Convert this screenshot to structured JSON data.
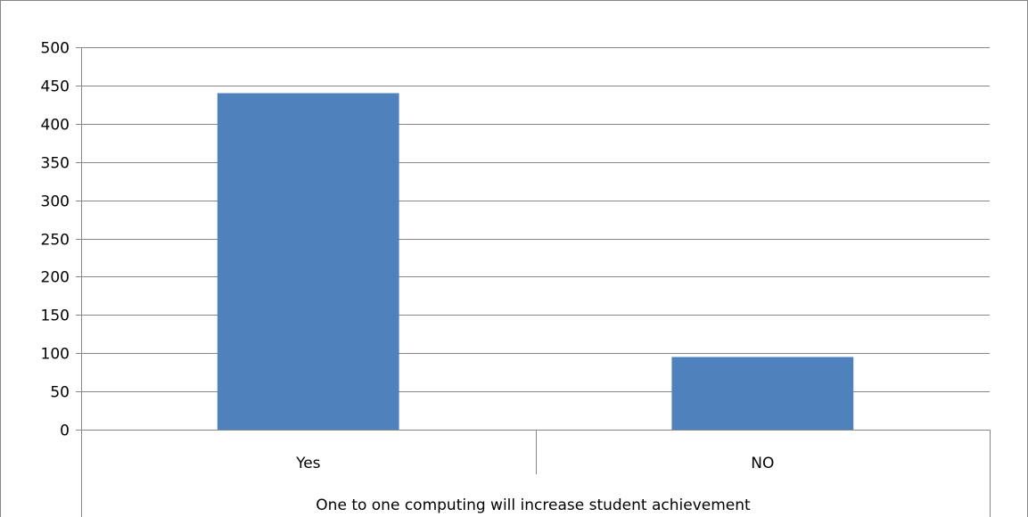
{
  "chart_data": {
    "type": "bar",
    "categories": [
      "Yes",
      "NO"
    ],
    "values": [
      440,
      95
    ],
    "group_label": "One to one computing will increase student achievement",
    "ylim": [
      0,
      500
    ],
    "yticks": [
      0,
      50,
      100,
      150,
      200,
      250,
      300,
      350,
      400,
      450,
      500
    ],
    "grid": true,
    "legend": "none",
    "bar_color": "#4F81BD",
    "grid_color": "#868686",
    "axis_color": "#868686"
  }
}
